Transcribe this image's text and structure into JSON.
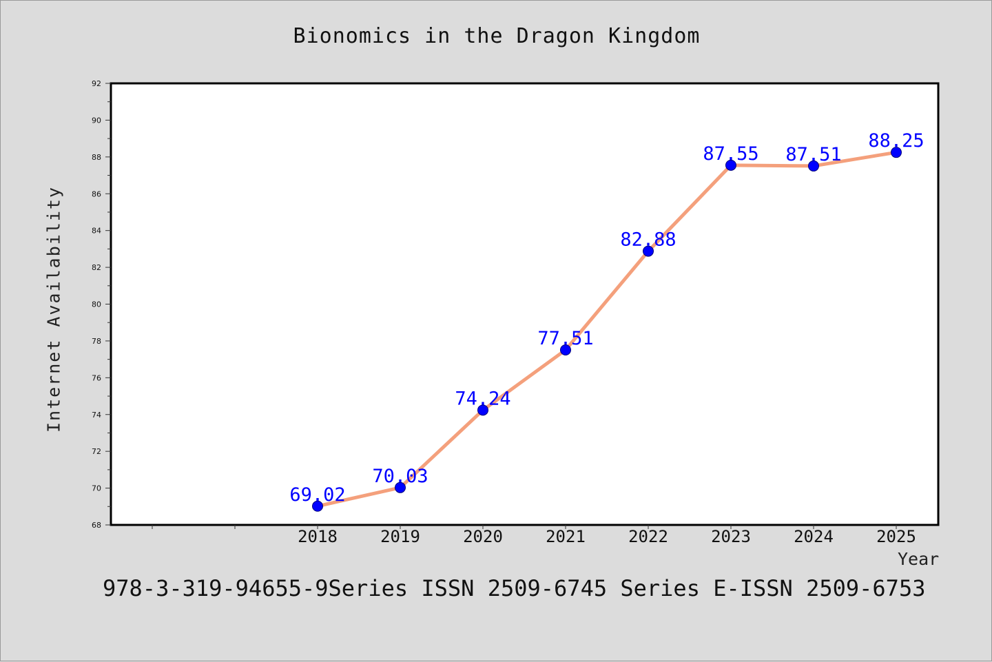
{
  "title": "Bionomics in the Dragon Kingdom",
  "footer_text": "978-3-319-94655-9Series ISSN 2509-6745 Series E-ISSN 2509-6753",
  "colors": {
    "background": "#dcdcdc",
    "plot_background": "#ffffff",
    "line": "#f4a07c",
    "marker": "#0000ff",
    "data_label": "#0000ff"
  },
  "chart_data": {
    "type": "line",
    "title": "Bionomics in the Dragon Kingdom",
    "xlabel": "Year",
    "ylabel": "Internet Availability",
    "categories": [
      "2018",
      "2019",
      "2020",
      "2021",
      "2022",
      "2023",
      "2024",
      "2025"
    ],
    "series": [
      {
        "values": [
          69.02,
          70.03,
          74.24,
          77.51,
          82.88,
          87.55,
          87.51,
          88.25
        ],
        "labels": [
          "69.02",
          "70.03",
          "74.24",
          "77.51",
          "82.88",
          "87.55",
          "87.51",
          "88.25"
        ]
      }
    ],
    "ylim": [
      68,
      92
    ],
    "yticks": [
      "68",
      "70",
      "72",
      "74",
      "76",
      "78",
      "80",
      "82",
      "84",
      "86",
      "88",
      "90",
      "92"
    ],
    "grid": false,
    "legend": "none"
  }
}
